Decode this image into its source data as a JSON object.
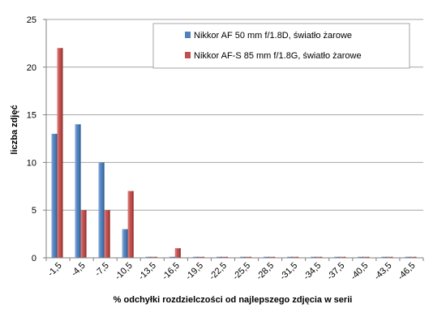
{
  "chart_data": {
    "type": "bar",
    "categories": [
      "-1,5",
      "-4,5",
      "-7,5",
      "-10,5",
      "-13,5",
      "-16,5",
      "-19,5",
      "-22,5",
      "-25,5",
      "-28,5",
      "-31,5",
      "-34,5",
      "-37,5",
      "-40,5",
      "-43,5",
      "-46,5"
    ],
    "series": [
      {
        "name": "Nikkor AF 50 mm f/1.8D, światło żarowe",
        "color": "#4f81bd",
        "values": [
          13,
          14,
          10,
          3,
          0,
          0,
          0,
          0,
          0,
          0,
          0,
          0,
          0,
          0,
          0,
          0
        ]
      },
      {
        "name": "Nikkor AF-S 85 mm f/1.8G, światło żarowe",
        "color": "#c0504d",
        "values": [
          22,
          5,
          5,
          7,
          0,
          1,
          0,
          0,
          0,
          0,
          0,
          0,
          0,
          0,
          0,
          0
        ]
      }
    ],
    "xlabel": "% odchyłki  rozdzielczości  od  najlepszego  zdjęcia  w  serii",
    "ylabel": "liczba zdjęć",
    "ylim": [
      0,
      25
    ],
    "yticks": [
      0,
      5,
      10,
      15,
      20,
      25
    ],
    "grid": true,
    "legend_position": "top-right"
  }
}
